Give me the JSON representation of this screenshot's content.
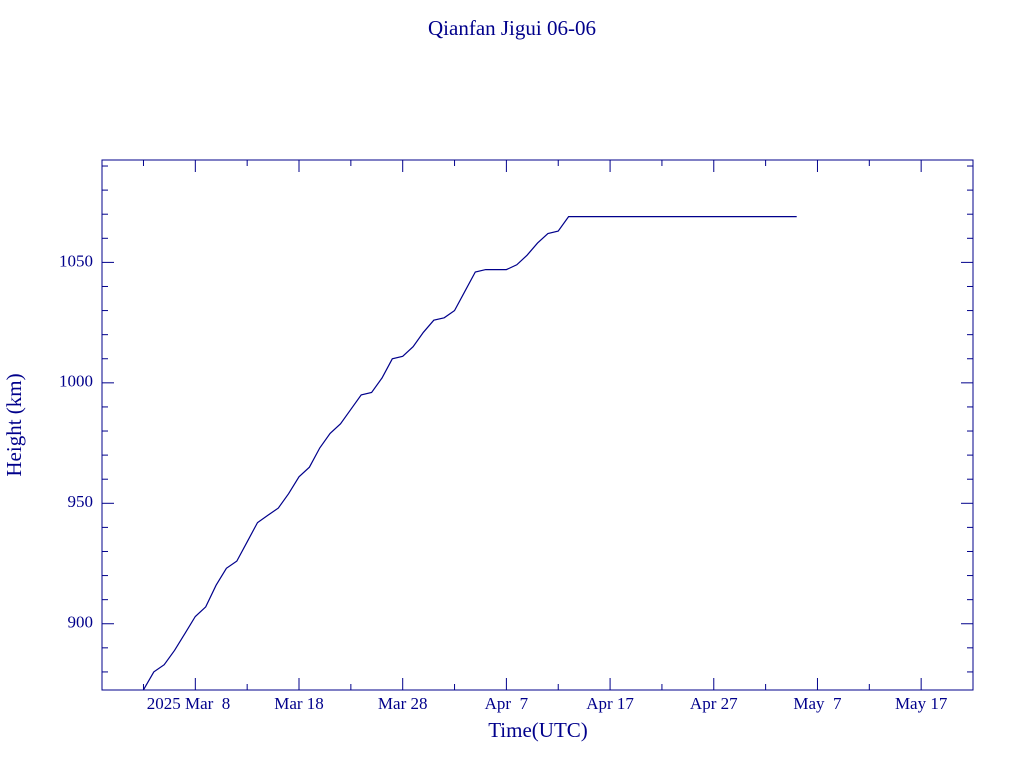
{
  "chart_data": {
    "type": "line",
    "title": "Qianfan Jigui 06-06",
    "x_label": "Time(UTC)",
    "y_label": "Height (km)",
    "x": [
      "2025-03-03",
      "2025-03-04",
      "2025-03-05",
      "2025-03-06",
      "2025-03-07",
      "2025-03-08",
      "2025-03-09",
      "2025-03-10",
      "2025-03-11",
      "2025-03-12",
      "2025-03-13",
      "2025-03-14",
      "2025-03-15",
      "2025-03-16",
      "2025-03-17",
      "2025-03-18",
      "2025-03-19",
      "2025-03-20",
      "2025-03-21",
      "2025-03-22",
      "2025-03-23",
      "2025-03-24",
      "2025-03-25",
      "2025-03-26",
      "2025-03-27",
      "2025-03-28",
      "2025-03-29",
      "2025-03-30",
      "2025-03-31",
      "2025-04-01",
      "2025-04-02",
      "2025-04-03",
      "2025-04-04",
      "2025-04-05",
      "2025-04-06",
      "2025-04-07",
      "2025-04-08",
      "2025-04-09",
      "2025-04-10",
      "2025-04-11",
      "2025-04-12",
      "2025-04-13",
      "2025-05-05"
    ],
    "series": [
      {
        "color": "#00008b",
        "values": [
          872.6,
          880,
          883,
          889,
          896,
          903,
          907,
          916,
          923,
          926,
          934,
          942,
          945,
          948,
          954,
          961,
          965,
          973,
          979,
          983,
          989,
          995,
          996,
          1002,
          1010,
          1011,
          1015,
          1021,
          1026,
          1027,
          1030,
          1038,
          1046,
          1047,
          1047,
          1047,
          1049,
          1053,
          1058,
          1062,
          1063,
          1069,
          1069
        ]
      }
    ],
    "xlim": [
      "2025-02-27",
      "2025-05-22"
    ],
    "xticks": [
      {
        "value": "2025-03-08",
        "label": "2025 Mar  8"
      },
      {
        "value": "2025-03-18",
        "label": "Mar 18"
      },
      {
        "value": "2025-03-28",
        "label": "Mar 28"
      },
      {
        "value": "2025-04-07",
        "label": "Apr  7"
      },
      {
        "value": "2025-04-17",
        "label": "Apr 17"
      },
      {
        "value": "2025-04-27",
        "label": "Apr 27"
      },
      {
        "value": "2025-05-07",
        "label": "May  7"
      },
      {
        "value": "2025-05-17",
        "label": "May 17"
      }
    ],
    "xminorticks": [
      "2025-03-03",
      "2025-03-13",
      "2025-03-23",
      "2025-04-02",
      "2025-04-12",
      "2025-04-22",
      "2025-05-02",
      "2025-05-12",
      "2025-05-22"
    ],
    "ylim": [
      872.5,
      1092.5
    ],
    "yticks": [
      900,
      950,
      1000,
      1050
    ],
    "yminorticks": [
      880,
      890,
      910,
      920,
      930,
      940,
      960,
      970,
      980,
      990,
      1010,
      1020,
      1030,
      1040,
      1060,
      1070,
      1080,
      1090
    ],
    "color": "#00008b"
  }
}
